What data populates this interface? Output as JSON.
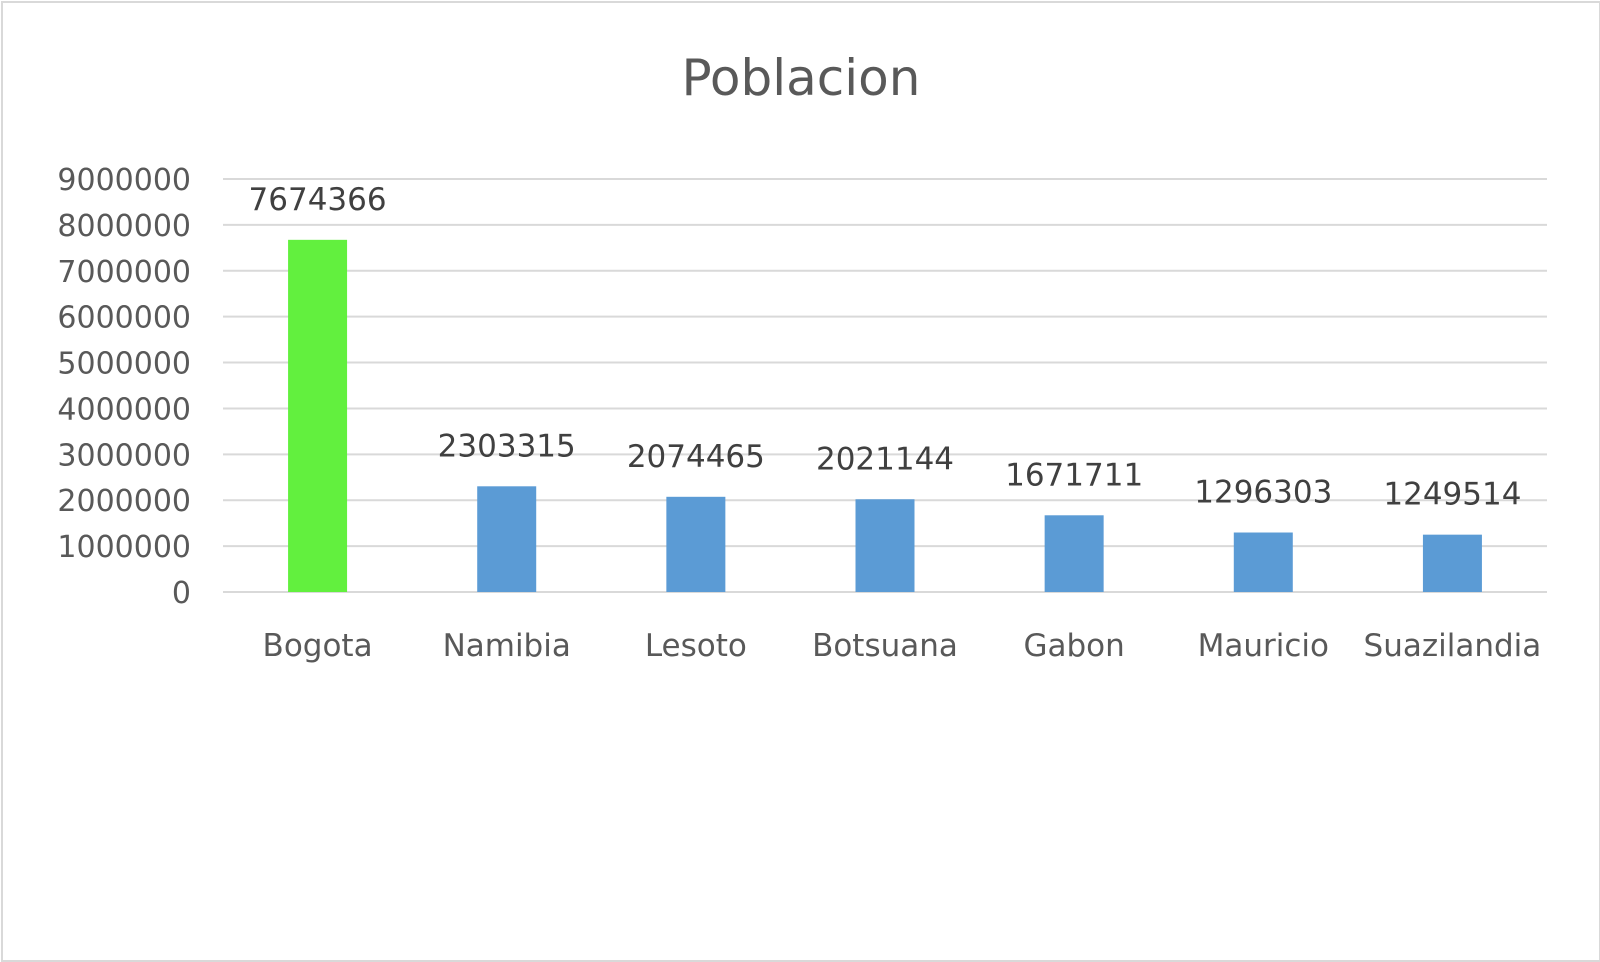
{
  "chart_data": {
    "type": "bar",
    "title": "Poblacion",
    "xlabel": "",
    "ylabel": "",
    "categories": [
      "Bogota",
      "Namibia",
      "Lesoto",
      "Botsuana",
      "Gabon",
      "Mauricio",
      "Suazilandia"
    ],
    "values": [
      7674366,
      2303315,
      2074465,
      2021144,
      1671711,
      1296303,
      1249514
    ],
    "data_labels": [
      "7674366",
      "2303315",
      "2074465",
      "2021144",
      "1671711",
      "1296303",
      "1249514"
    ],
    "ylim": [
      0,
      9000000
    ],
    "yticks": [
      0,
      1000000,
      2000000,
      3000000,
      4000000,
      5000000,
      6000000,
      7000000,
      8000000,
      9000000
    ],
    "ytick_labels": [
      "0",
      "1000000",
      "2000000",
      "3000000",
      "4000000",
      "5000000",
      "6000000",
      "7000000",
      "8000000",
      "9000000"
    ],
    "grid": true,
    "legend": "none",
    "colors": {
      "default_bar": "#5b9bd5",
      "highlight_bar": "#62f03e",
      "gridline": "#d9d9d9",
      "text": "#595959"
    },
    "highlight_index": 0
  }
}
